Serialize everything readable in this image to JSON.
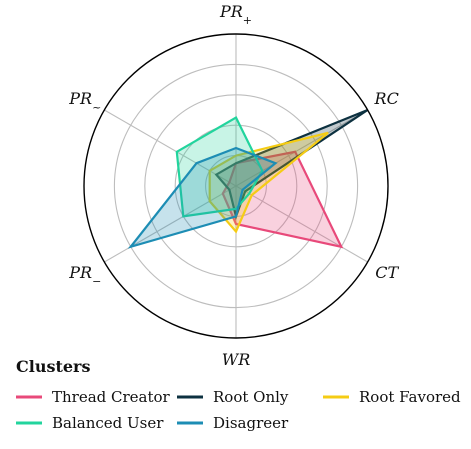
{
  "chart_data": {
    "type": "radar",
    "axes": [
      "RC",
      "CT",
      "WR",
      "PR_-",
      "PR_~",
      "PR_+"
    ],
    "axis_labels": [
      {
        "base": "RC",
        "sub": ""
      },
      {
        "base": "CT",
        "sub": ""
      },
      {
        "base": "WR",
        "sub": ""
      },
      {
        "base": "PR",
        "sub": "−"
      },
      {
        "base": "PR",
        "sub": "~"
      },
      {
        "base": "PR",
        "sub": "+"
      }
    ],
    "rmax": 1.0,
    "rings": [
      0.2,
      0.4,
      0.6,
      0.8,
      1.0
    ],
    "grid": true,
    "legend_title": "Clusters",
    "legend_position": "bottom",
    "series": [
      {
        "name": "Thread Creator",
        "color": "#e8497a",
        "values": [
          0.45,
          0.8,
          0.25,
          0.1,
          0.05,
          0.15
        ]
      },
      {
        "name": "Root Only",
        "color": "#0d3140",
        "values": [
          1.0,
          0.07,
          0.2,
          0.05,
          0.15,
          0.15
        ]
      },
      {
        "name": "Root Favored",
        "color": "#f5cc14",
        "values": [
          0.7,
          0.12,
          0.3,
          0.2,
          0.2,
          0.2
        ]
      },
      {
        "name": "Balanced User",
        "color": "#22d49d",
        "values": [
          0.2,
          0.1,
          0.15,
          0.4,
          0.45,
          0.45
        ]
      },
      {
        "name": "Disagreer",
        "color": "#1d8db4",
        "values": [
          0.3,
          0.05,
          0.2,
          0.8,
          0.3,
          0.25
        ]
      }
    ]
  }
}
